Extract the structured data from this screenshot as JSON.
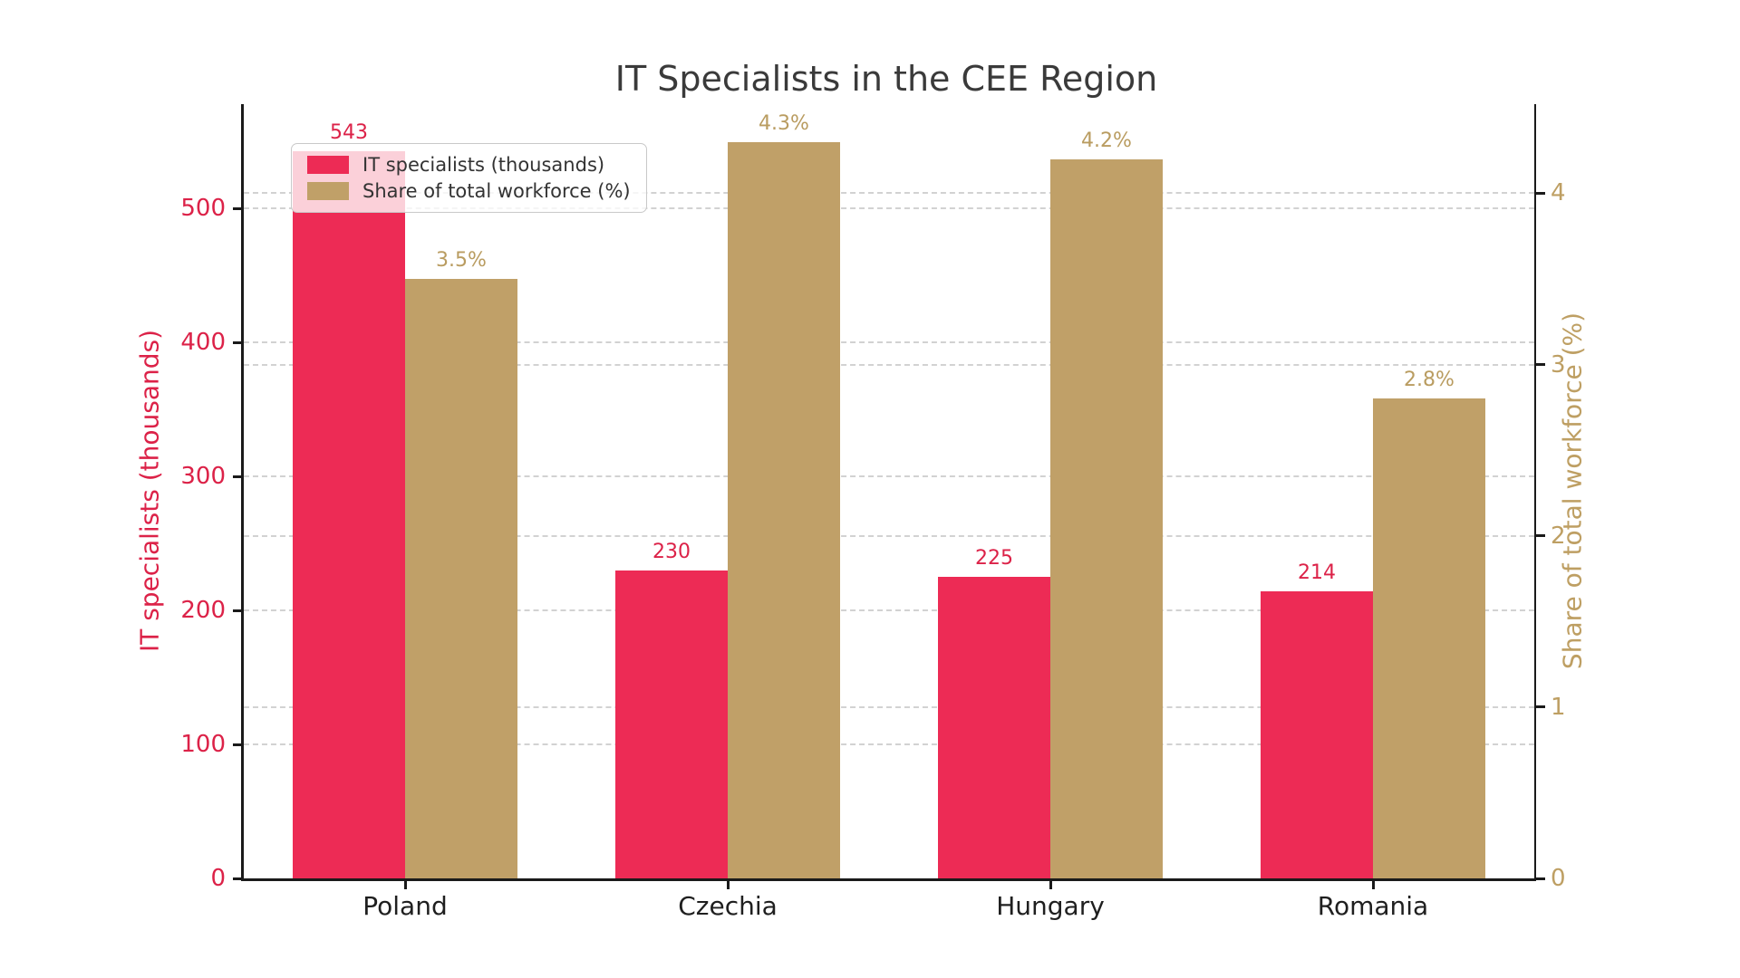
{
  "chart_data": {
    "type": "bar",
    "title": "IT Specialists in the CEE Region",
    "categories": [
      "Poland",
      "Czechia",
      "Hungary",
      "Romania"
    ],
    "series": [
      {
        "name": "IT specialists (thousands)",
        "axis": "left",
        "values": [
          543,
          230,
          225,
          214
        ],
        "value_labels": [
          "543",
          "230",
          "225",
          "214"
        ],
        "color": "#ed2b55",
        "label_color": "#dc2248"
      },
      {
        "name": "Share of total workforce (%)",
        "axis": "right",
        "values": [
          3.5,
          4.3,
          4.2,
          2.8
        ],
        "value_labels": [
          "3.5%",
          "4.3%",
          "4.2%",
          "2.8%"
        ],
        "color": "#c0a068",
        "label_color": "#b99c60"
      }
    ],
    "ylabel_left": "IT specialists (thousands)",
    "ylabel_right": "Share of total workforce (%)",
    "yticks_left": [
      0,
      100,
      200,
      300,
      400,
      500
    ],
    "yticks_right": [
      0,
      1,
      2,
      3,
      4
    ],
    "ylim_left": [
      0,
      578
    ],
    "ylim_right": [
      0,
      4.52
    ],
    "grid": true,
    "grid_style": "dashed",
    "legend_position": "upper-left"
  },
  "colors": {
    "crimson_bar": "#ed2b55",
    "crimson_text": "#dc2248",
    "tan_bar": "#c0a068",
    "tan_text": "#be9f63",
    "title_text": "#3a3a3a",
    "axis_spine": "#1a1a1a",
    "gridline": "#d2d2d2"
  }
}
